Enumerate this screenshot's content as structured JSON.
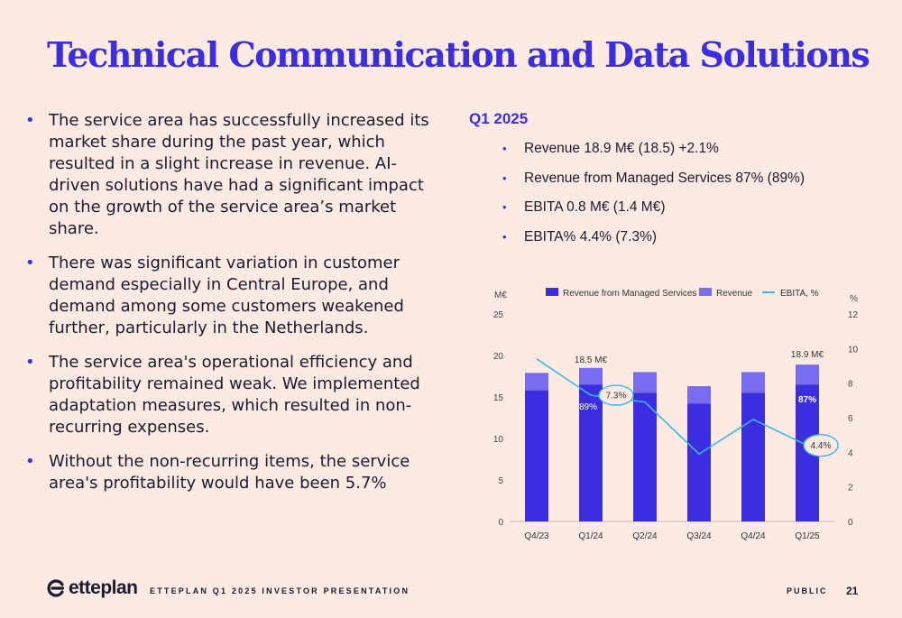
{
  "title": "Technical Communication and Data Solutions",
  "left_bullets": [
    {
      "line1": "The service area has successfully increased its",
      "line2": "market share during the past year, which",
      "line3": "resulted in a slight increase in revenue. AI-",
      "line4": "driven solutions have had a significant impact",
      "line5": "on the growth of the service area’s market",
      "line6": "share."
    },
    {
      "line1": "There was significant variation in customer",
      "line2": "demand especially in Central Europe, and",
      "line3": "demand among some customers weakened",
      "line4": "further, particularly in the Netherlands."
    },
    {
      "line1": "The service area's operational efficiency and",
      "line2": "profitability remained weak. We implemented",
      "line3": "adaptation measures, which resulted in non-",
      "line4": "recurring expenses."
    },
    {
      "line1": "Without the non-recurring items, the service",
      "line2": "area's profitability would have been 5.7%"
    }
  ],
  "bullet_symbol": "•",
  "q_title": "Q1 2025",
  "right_bullets": [
    "Revenue 18.9 M€ (18.5) +2.1%",
    "Revenue from Managed Services 87% (89%)",
    "EBITA 0.8 M€ (1.4 M€)",
    "EBITA% 4.4% (7.3%)"
  ],
  "chart_data": {
    "type": "bar",
    "categories": [
      "Q4/23",
      "Q1/24",
      "Q2/24",
      "Q3/24",
      "Q4/24",
      "Q1/25"
    ],
    "series": [
      {
        "name": "Revenue from Managed Services",
        "values": [
          15.8,
          16.5,
          15.5,
          14.2,
          15.5,
          16.5
        ],
        "color": "#3a2ee0"
      },
      {
        "name": "Revenue",
        "values": [
          17.9,
          18.5,
          18.0,
          16.3,
          18.0,
          18.9
        ],
        "color": "#7a6cf0"
      },
      {
        "name": "EBITA, %",
        "values": [
          9.4,
          7.3,
          6.9,
          3.9,
          5.9,
          4.4
        ],
        "color": "#42b4e6",
        "axis": "right"
      }
    ],
    "y_label_left": "M€",
    "y_label_right": "%",
    "ylim_left": [
      0,
      25
    ],
    "ylim_right": [
      0,
      12
    ],
    "yticks_left": [
      "0",
      "5",
      "10",
      "15",
      "20",
      "25"
    ],
    "yticks_right": [
      "0",
      "2",
      "4",
      "6",
      "8",
      "10",
      "12"
    ],
    "annotations": {
      "q124_total": "18.5 M€",
      "q124_share": "89%",
      "q124_ebita": "7.3%",
      "q125_total": "18.9 M€",
      "q125_share": "87%",
      "q125_ebita": "4.4%"
    }
  },
  "footer": {
    "logo_text": "etteplan",
    "presentation": "ETTEPLAN Q1 2025 INVESTOR PRESENTATION",
    "classification": "PUBLIC",
    "page": "21"
  },
  "colors": {
    "accent": "#3a2ee0",
    "background": "#fdeae3",
    "line": "#42b4e6"
  }
}
